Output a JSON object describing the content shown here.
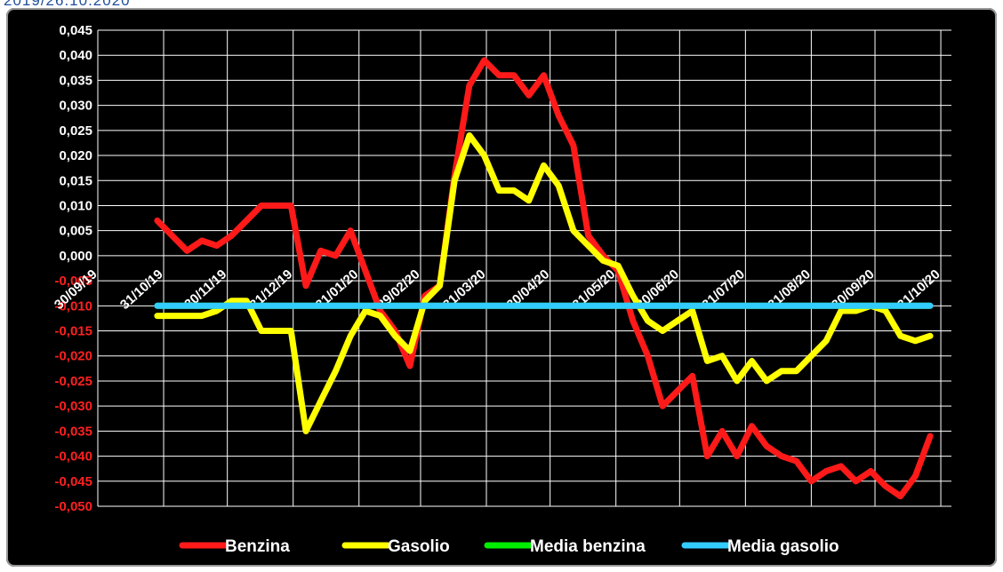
{
  "caption": "2019/26.10.2020",
  "chart_data": {
    "type": "line",
    "title": "",
    "xlabel": "",
    "ylabel": "",
    "ylim": [
      -0.05,
      0.045
    ],
    "yticks": [
      "0,045",
      "0,040",
      "0,035",
      "0,030",
      "0,025",
      "0,020",
      "0,015",
      "0,010",
      "0,005",
      "0,000",
      "-0,005",
      "-0,010",
      "-0,015",
      "-0,020",
      "-0,025",
      "-0,030",
      "-0,035",
      "-0,040",
      "-0,045",
      "-0,050"
    ],
    "xlim": [
      "2019-09-30",
      "2020-11-05"
    ],
    "xticks": [
      {
        "date": "2019-09-30",
        "label": "30/09/19"
      },
      {
        "date": "2019-10-31",
        "label": "31/10/19"
      },
      {
        "date": "2019-11-30",
        "label": "30/11/19"
      },
      {
        "date": "2019-12-31",
        "label": "31/12/19"
      },
      {
        "date": "2020-01-31",
        "label": "31/01/20"
      },
      {
        "date": "2020-02-29",
        "label": "29/02/20"
      },
      {
        "date": "2020-03-31",
        "label": "31/03/20"
      },
      {
        "date": "2020-04-30",
        "label": "30/04/20"
      },
      {
        "date": "2020-05-31",
        "label": "31/05/20"
      },
      {
        "date": "2020-06-30",
        "label": "30/06/20"
      },
      {
        "date": "2020-07-31",
        "label": "31/07/20"
      },
      {
        "date": "2020-08-31",
        "label": "31/08/20"
      },
      {
        "date": "2020-09-30",
        "label": "30/09/20"
      },
      {
        "date": "2020-10-31",
        "label": "31/10/20"
      }
    ],
    "grid": true,
    "legend_position": "bottom",
    "series": [
      {
        "name": "Benzina",
        "color": "#ff1a1a",
        "x": [
          "2019-10-28",
          "2019-11-04",
          "2019-11-11",
          "2019-11-18",
          "2019-11-25",
          "2019-12-02",
          "2019-12-09",
          "2019-12-16",
          "2019-12-23",
          "2019-12-30",
          "2020-01-06",
          "2020-01-13",
          "2020-01-20",
          "2020-01-27",
          "2020-02-03",
          "2020-02-10",
          "2020-02-17",
          "2020-02-24",
          "2020-03-02",
          "2020-03-09",
          "2020-03-16",
          "2020-03-23",
          "2020-03-30",
          "2020-04-06",
          "2020-04-13",
          "2020-04-20",
          "2020-04-27",
          "2020-05-04",
          "2020-05-11",
          "2020-05-18",
          "2020-05-25",
          "2020-06-01",
          "2020-06-08",
          "2020-06-15",
          "2020-06-22",
          "2020-06-29",
          "2020-07-06",
          "2020-07-13",
          "2020-07-20",
          "2020-07-27",
          "2020-08-03",
          "2020-08-10",
          "2020-08-17",
          "2020-08-24",
          "2020-08-31",
          "2020-09-07",
          "2020-09-14",
          "2020-09-21",
          "2020-09-28",
          "2020-10-05",
          "2020-10-12",
          "2020-10-19",
          "2020-10-26"
        ],
        "values": [
          0.007,
          0.004,
          0.001,
          0.003,
          0.002,
          0.004,
          0.007,
          0.01,
          0.01,
          0.01,
          -0.006,
          0.001,
          0.0,
          0.005,
          -0.003,
          -0.011,
          -0.015,
          -0.022,
          -0.008,
          -0.006,
          0.016,
          0.034,
          0.039,
          0.036,
          0.036,
          0.032,
          0.036,
          0.028,
          0.022,
          0.004,
          0.0,
          -0.003,
          -0.013,
          -0.02,
          -0.03,
          -0.027,
          -0.024,
          -0.04,
          -0.035,
          -0.04,
          -0.034,
          -0.038,
          -0.04,
          -0.041,
          -0.045,
          -0.043,
          -0.042,
          -0.045,
          -0.043,
          -0.046,
          -0.048,
          -0.044,
          -0.036
        ]
      },
      {
        "name": "Gasolio",
        "color": "#ffff00",
        "x": [
          "2019-10-28",
          "2019-11-04",
          "2019-11-11",
          "2019-11-18",
          "2019-11-25",
          "2019-12-02",
          "2019-12-09",
          "2019-12-16",
          "2019-12-23",
          "2019-12-30",
          "2020-01-06",
          "2020-01-13",
          "2020-01-20",
          "2020-01-27",
          "2020-02-03",
          "2020-02-10",
          "2020-02-17",
          "2020-02-24",
          "2020-03-02",
          "2020-03-09",
          "2020-03-16",
          "2020-03-23",
          "2020-03-30",
          "2020-04-06",
          "2020-04-13",
          "2020-04-20",
          "2020-04-27",
          "2020-05-04",
          "2020-05-11",
          "2020-05-18",
          "2020-05-25",
          "2020-06-01",
          "2020-06-08",
          "2020-06-15",
          "2020-06-22",
          "2020-06-29",
          "2020-07-06",
          "2020-07-13",
          "2020-07-20",
          "2020-07-27",
          "2020-08-03",
          "2020-08-10",
          "2020-08-17",
          "2020-08-24",
          "2020-08-31",
          "2020-09-07",
          "2020-09-14",
          "2020-09-21",
          "2020-09-28",
          "2020-10-05",
          "2020-10-12",
          "2020-10-19",
          "2020-10-26"
        ],
        "values": [
          -0.012,
          -0.012,
          -0.012,
          -0.012,
          -0.011,
          -0.009,
          -0.009,
          -0.015,
          -0.015,
          -0.015,
          -0.035,
          -0.029,
          -0.023,
          -0.016,
          -0.011,
          -0.012,
          -0.016,
          -0.019,
          -0.009,
          -0.006,
          0.015,
          0.024,
          0.02,
          0.013,
          0.013,
          0.011,
          0.018,
          0.014,
          0.005,
          0.002,
          -0.001,
          -0.002,
          -0.008,
          -0.013,
          -0.015,
          -0.013,
          -0.011,
          -0.021,
          -0.02,
          -0.025,
          -0.021,
          -0.025,
          -0.023,
          -0.023,
          -0.02,
          -0.017,
          -0.011,
          -0.011,
          -0.01,
          -0.011,
          -0.016,
          -0.017,
          -0.016
        ]
      },
      {
        "name": "Media benzina",
        "color": "#00ee00",
        "x": [
          "2019-10-28",
          "2020-10-26"
        ],
        "values": [
          -0.01,
          -0.01
        ]
      },
      {
        "name": "Media gasolio",
        "color": "#33ccff",
        "x": [
          "2019-10-28",
          "2020-10-26"
        ],
        "values": [
          -0.01,
          -0.01
        ]
      }
    ]
  }
}
